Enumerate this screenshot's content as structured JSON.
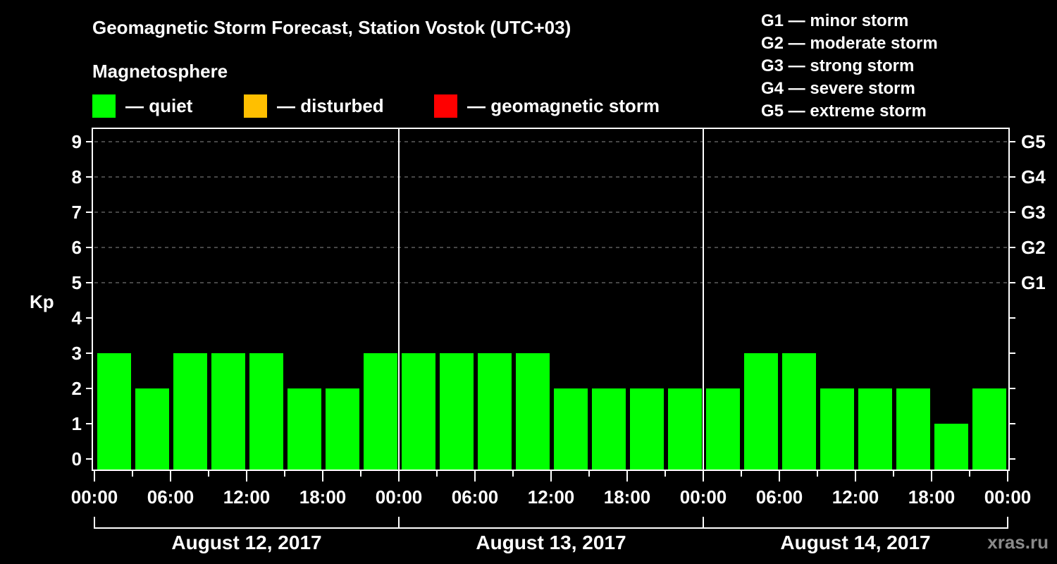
{
  "header": {
    "title": "Geomagnetic Storm Forecast, Station Vostok (UTC+03)",
    "section": "Magnetosphere"
  },
  "legend": [
    {
      "label": "— quiet",
      "color": "#00ff00"
    },
    {
      "label": "— disturbed",
      "color": "#ffbf00"
    },
    {
      "label": "— geomagnetic storm",
      "color": "#ff0000"
    }
  ],
  "g_legend": [
    "G1 — minor storm",
    "G2 — moderate storm",
    "G3 — strong storm",
    "G4 — severe storm",
    "G5 — extreme storm"
  ],
  "credit": "xras.ru",
  "chart_data": {
    "type": "bar",
    "title": "Geomagnetic Storm Forecast, Station Vostok (UTC+03)",
    "xlabel": "",
    "ylabel": "Kp",
    "ylim": [
      0,
      9
    ],
    "yticks": [
      "0",
      "1",
      "2",
      "3",
      "4",
      "5",
      "6",
      "7",
      "8",
      "9"
    ],
    "right_ticks": [
      {
        "kp": 5,
        "label": "G1"
      },
      {
        "kp": 6,
        "label": "G2"
      },
      {
        "kp": 7,
        "label": "G3"
      },
      {
        "kp": 8,
        "label": "G4"
      },
      {
        "kp": 9,
        "label": "G5"
      }
    ],
    "grid": "dashed horizontal at Kp 5-9",
    "xticks": [
      "00:00",
      "06:00",
      "12:00",
      "18:00",
      "00:00",
      "06:00",
      "12:00",
      "18:00",
      "00:00",
      "06:00",
      "12:00",
      "18:00",
      "00:00"
    ],
    "days": [
      "August 12, 2017",
      "August 13, 2017",
      "August 14, 2017"
    ],
    "interval_hours": 3,
    "categories": [
      "Aug12 00-03",
      "Aug12 03-06",
      "Aug12 06-09",
      "Aug12 09-12",
      "Aug12 12-15",
      "Aug12 15-18",
      "Aug12 18-21",
      "Aug12 21-24",
      "Aug13 00-03",
      "Aug13 03-06",
      "Aug13 06-09",
      "Aug13 09-12",
      "Aug13 12-15",
      "Aug13 15-18",
      "Aug13 18-21",
      "Aug13 21-24",
      "Aug14 00-03",
      "Aug14 03-06",
      "Aug14 06-09",
      "Aug14 09-12",
      "Aug14 12-15",
      "Aug14 15-18",
      "Aug14 18-21",
      "Aug14 21-24"
    ],
    "values": [
      3,
      2,
      3,
      3,
      3,
      2,
      2,
      3,
      3,
      3,
      3,
      3,
      2,
      2,
      2,
      2,
      2,
      3,
      3,
      2,
      2,
      2,
      1,
      2
    ],
    "status": [
      "quiet",
      "quiet",
      "quiet",
      "quiet",
      "quiet",
      "quiet",
      "quiet",
      "quiet",
      "quiet",
      "quiet",
      "quiet",
      "quiet",
      "quiet",
      "quiet",
      "quiet",
      "quiet",
      "quiet",
      "quiet",
      "quiet",
      "quiet",
      "quiet",
      "quiet",
      "quiet",
      "quiet"
    ],
    "colors": {
      "quiet": "#00ff00",
      "disturbed": "#ffbf00",
      "storm": "#ff0000"
    }
  }
}
